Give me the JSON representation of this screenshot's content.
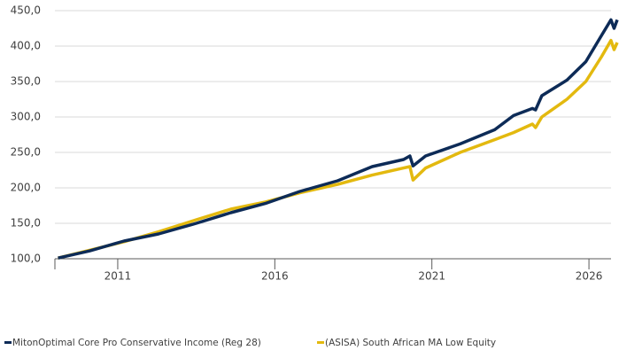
{
  "chart_data": {
    "type": "line",
    "x": [
      2009.1,
      2010.1,
      2011.2,
      2012.3,
      2013.5,
      2014.6,
      2015.7,
      2016.8,
      2018.0,
      2019.1,
      2020.1,
      2020.3,
      2020.4,
      2020.8,
      2021.9,
      2023.0,
      2023.6,
      2024.2,
      2024.3,
      2024.5,
      2025.3,
      2025.9,
      2026.4,
      2026.7,
      2026.8,
      2026.9
    ],
    "series": [
      {
        "name": "MitonOptimal Core Pro Conservative Income (Reg 28)",
        "color": "#0d2b57",
        "values": [
          101,
          111,
          125,
          135,
          150,
          165,
          178,
          195,
          210,
          230,
          240,
          245,
          231,
          245,
          262,
          282,
          302,
          312,
          310,
          330,
          352,
          378,
          415,
          437,
          425,
          437
        ]
      },
      {
        "name": "(ASISA) South African MA Low Equity",
        "color": "#e3b90f",
        "values": [
          101,
          112,
          124,
          138,
          155,
          170,
          180,
          193,
          205,
          218,
          228,
          230,
          211,
          228,
          250,
          268,
          278,
          290,
          285,
          300,
          325,
          350,
          385,
          408,
          395,
          405
        ]
      }
    ],
    "xlim": [
      2009,
      2026.9
    ],
    "xticks": [
      2011,
      2016,
      2021,
      2026
    ],
    "ylim": [
      100,
      450
    ],
    "yticks": [
      {
        "value": 100,
        "label": "100,0"
      },
      {
        "value": 150,
        "label": "150,0"
      },
      {
        "value": 200,
        "label": "200,0"
      },
      {
        "value": 250,
        "label": "250,0"
      },
      {
        "value": 300,
        "label": "300,0"
      },
      {
        "value": 350,
        "label": "350,0"
      },
      {
        "value": 400,
        "label": "400,0"
      },
      {
        "value": 450,
        "label": "450,0"
      }
    ],
    "grid": true
  }
}
